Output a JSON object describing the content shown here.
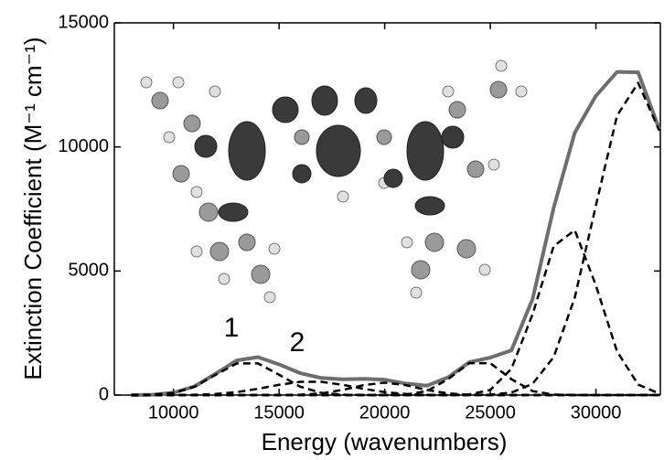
{
  "chart_data": {
    "type": "line",
    "xlabel": "Energy (wavenumbers)",
    "ylabel": "Extinction Coefficient (M⁻¹ cm⁻¹)",
    "x": [
      8000,
      9000,
      10000,
      11000,
      12000,
      13000,
      14000,
      15000,
      16000,
      17000,
      18000,
      19000,
      20000,
      21000,
      22000,
      23000,
      24000,
      25000,
      26000,
      27000,
      28000,
      29000,
      30000,
      31000,
      32000,
      33000
    ],
    "series": [
      {
        "color": "#6e6e6e",
        "dashed": false,
        "values": [
          2,
          15,
          92,
          350,
          863,
          1396,
          1529,
          1236,
          884,
          690,
          636,
          654,
          620,
          464,
          379,
          714,
          1324,
          1510,
          1803,
          3864,
          7549,
          10577,
          12060,
          13023,
          13005,
          10718
        ]
      },
      {
        "color": "#000000",
        "dashed": true,
        "values": [
          2,
          15,
          89,
          337,
          819,
          1277,
          1277,
          819,
          337,
          89,
          15,
          2,
          0,
          0,
          0,
          0,
          0,
          0,
          0,
          0,
          0,
          0,
          0,
          0,
          0,
          0
        ]
      },
      {
        "color": "#000000",
        "dashed": true,
        "values": [
          0,
          0,
          3,
          13,
          44,
          119,
          252,
          415,
          533,
          533,
          415,
          252,
          119,
          44,
          13,
          3,
          0,
          0,
          0,
          0,
          0,
          0,
          0,
          0,
          0,
          0
        ]
      },
      {
        "color": "#000000",
        "dashed": true,
        "values": [
          0,
          0,
          0,
          0,
          0,
          0,
          0,
          2,
          14,
          68,
          206,
          400,
          500,
          400,
          206,
          68,
          14,
          2,
          0,
          0,
          0,
          0,
          0,
          0,
          0,
          0
        ]
      },
      {
        "color": "#000000",
        "dashed": true,
        "values": [
          0,
          0,
          0,
          0,
          0,
          0,
          0,
          0,
          0,
          0,
          0,
          0,
          1,
          20,
          160,
          641,
          1284,
          1284,
          641,
          160,
          20,
          1,
          0,
          0,
          0,
          0
        ]
      },
      {
        "color": "#000000",
        "dashed": true,
        "values": [
          0,
          0,
          0,
          0,
          0,
          0,
          0,
          0,
          0,
          0,
          0,
          0,
          0,
          0,
          0,
          2,
          24,
          207,
          1060,
          3253,
          5999,
          6645,
          4418,
          1763,
          422,
          61
        ]
      },
      {
        "color": "#000000",
        "dashed": true,
        "values": [
          0,
          0,
          0,
          0,
          0,
          0,
          0,
          0,
          0,
          0,
          0,
          0,
          0,
          0,
          0,
          0,
          2,
          17,
          102,
          451,
          1530,
          3931,
          7642,
          11260,
          12583,
          10657
        ]
      }
    ],
    "annotations": [
      "1",
      "2"
    ],
    "xlim": [
      7200,
      33050
    ],
    "ylim": [
      0,
      15000
    ],
    "xticks": [
      10000,
      15000,
      20000,
      25000,
      30000
    ],
    "yticks": [
      0,
      5000,
      10000,
      15000
    ],
    "grid": false
  }
}
